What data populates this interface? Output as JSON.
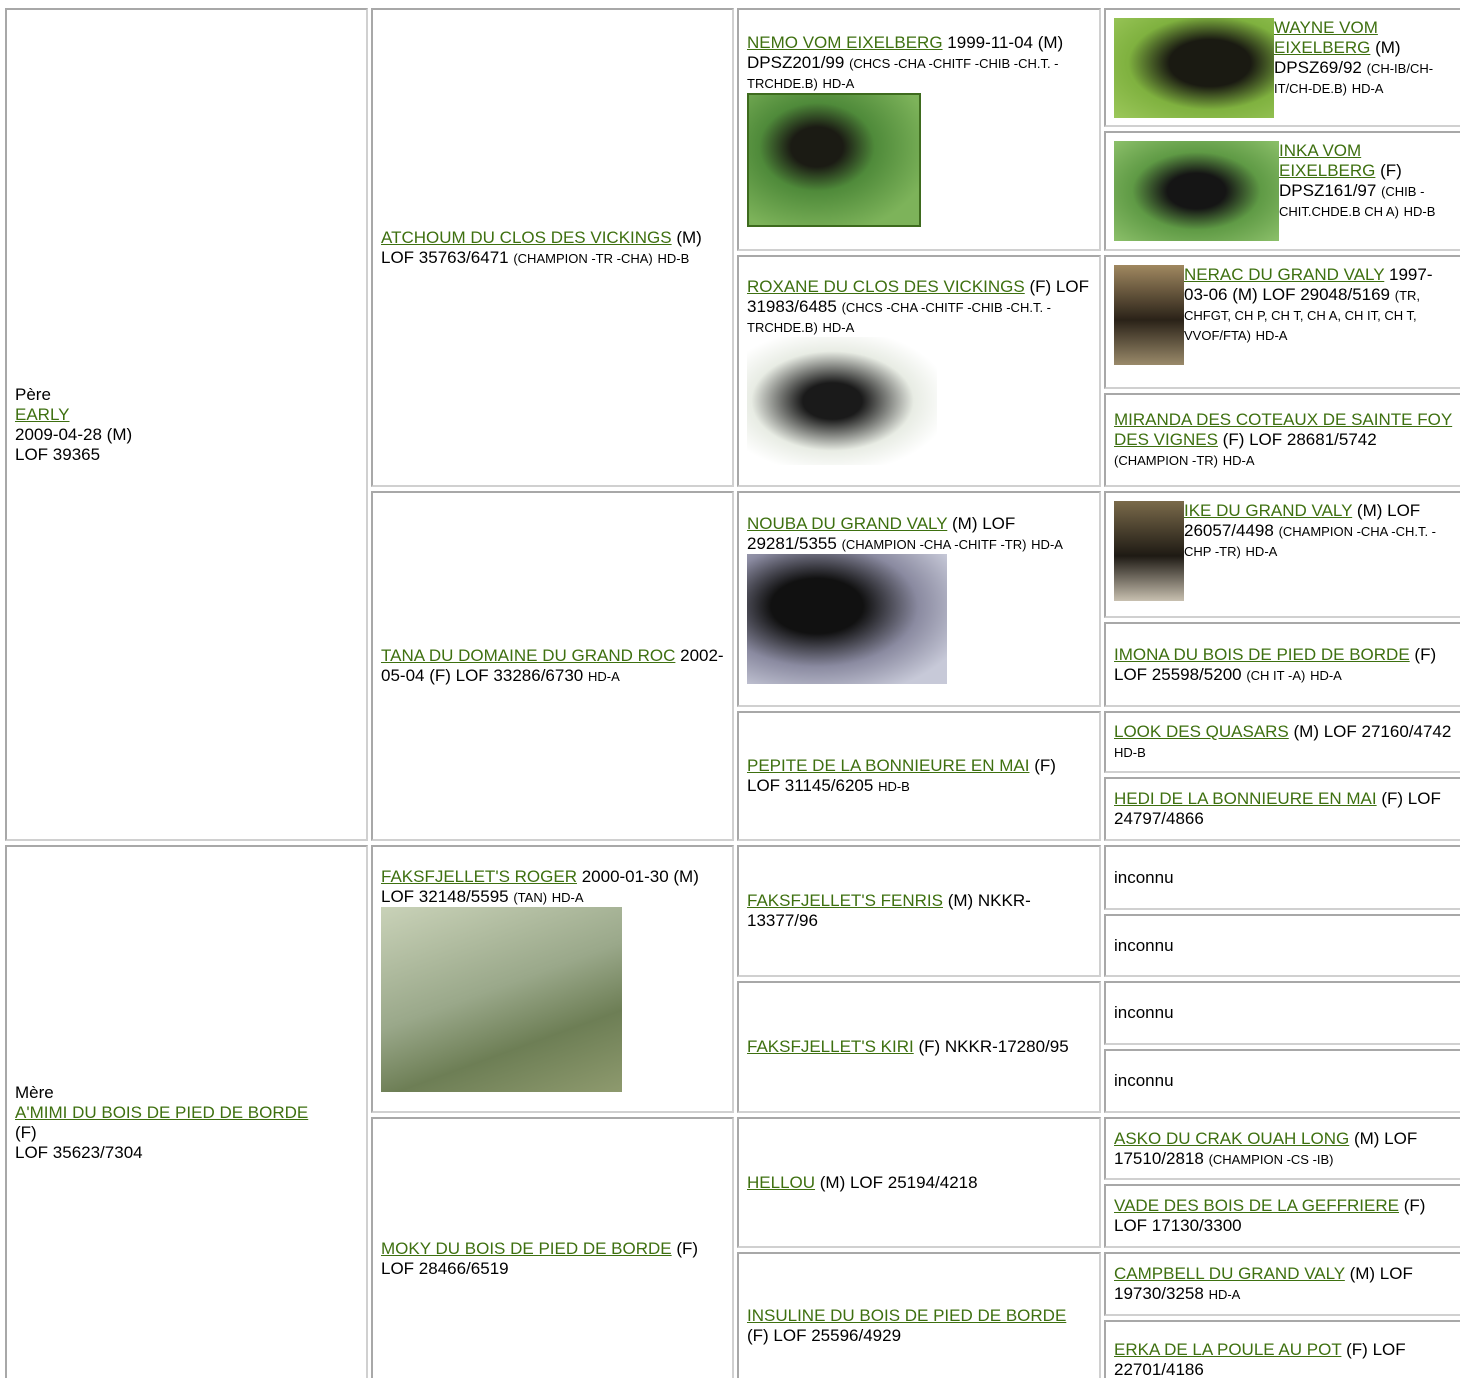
{
  "pedigree": {
    "columns": [
      [
        {
          "label": "Père",
          "name": "EARLY",
          "birth": "2009-04-28 (M)",
          "registration": "LOF 39365"
        },
        {
          "label": "Mère",
          "name": "A'MIMI DU BOIS DE PIED DE BORDE",
          "birth": "(F)",
          "registration": "LOF 35623/7304"
        }
      ],
      [
        {
          "name": "ATCHOUM DU CLOS DES VICKINGS",
          "details": "(M) LOF 35763/6471",
          "titles": "(CHAMPION -TR -CHA)",
          "health": "HD-B"
        },
        {
          "name": "TANA DU DOMAINE DU GRAND ROC",
          "details": "2002-05-04 (F) LOF 33286/6730",
          "health": "HD-A"
        },
        {
          "name": "FAKSFJELLET'S ROGER",
          "details": "2000-01-30 (M) LOF 32148/5595",
          "titles": "(TAN)",
          "health": "HD-A"
        },
        {
          "name": "MOKY DU BOIS DE PIED DE BORDE",
          "details": "(F) LOF 28466/6519"
        }
      ],
      [
        {
          "name": "NEMO VOM EIXELBERG",
          "details": "1999-11-04 (M) DPSZ201/99",
          "titles": "(CHCS -CHA -CHITF -CHIB -CH.T. -TRCHDE.B)",
          "health": "HD-A"
        },
        {
          "name": "ROXANE DU CLOS DES VICKINGS",
          "details": "(F) LOF 31983/6485",
          "titles": "(CHCS -CHA -CHITF -CHIB -CH.T. -TRCHDE.B)",
          "health": "HD-A"
        },
        {
          "name": "NOUBA DU GRAND VALY",
          "details": "(M) LOF 29281/5355",
          "titles": "(CHAMPION -CHA -CHITF -TR)",
          "health": "HD-A"
        },
        {
          "name": "PEPITE DE LA BONNIEURE EN MAI",
          "details": "(F) LOF 31145/6205",
          "health": "HD-B"
        },
        {
          "name": "FAKSFJELLET'S FENRIS",
          "details": "(M) NKKR-13377/96"
        },
        {
          "name": "FAKSFJELLET'S KIRI",
          "details": "(F) NKKR-17280/95"
        },
        {
          "name": "HELLOU",
          "details": "(M) LOF 25194/4218"
        },
        {
          "name": "INSULINE DU BOIS DE PIED DE BORDE",
          "details": "(F) LOF 25596/4929"
        }
      ],
      [
        {
          "name": "WAYNE VOM EIXELBERG",
          "details": "(M) DPSZ69/92",
          "titles": "(CH-IB/CH-IT/CH-DE.B)",
          "health": "HD-A"
        },
        {
          "name": "INKA VOM EIXELBERG",
          "details": "(F) DPSZ161/97",
          "titles": "(CHIB -CHIT.CHDE.B CH A)",
          "health": "HD-B"
        },
        {
          "name": "NERAC DU GRAND VALY",
          "details": "1997-03-06 (M) LOF 29048/5169",
          "titles": "(TR, CHFGT, CH P, CH T, CH A, CH IT, CH T, VVOF/FTA)",
          "health": "HD-A"
        },
        {
          "name": "MIRANDA DES COTEAUX DE SAINTE FOY DES VIGNES",
          "details": "(F) LOF 28681/5742",
          "titles": "(CHAMPION -TR)",
          "health": "HD-A"
        },
        {
          "name": "IKE DU GRAND VALY",
          "details": "(M) LOF 26057/4498",
          "titles": "(CHAMPION -CHA -CH.T. -CHP -TR)",
          "health": "HD-A"
        },
        {
          "name": "IMONA DU BOIS DE PIED DE BORDE",
          "details": "(F) LOF 25598/5200",
          "titles": "(CH IT -A)",
          "health": "HD-A"
        },
        {
          "name": "LOOK DES QUASARS",
          "details": "(M) LOF 27160/4742",
          "health": "HD-B"
        },
        {
          "name": "HEDI DE LA BONNIEURE EN MAI",
          "details": "(F) LOF 24797/4866"
        },
        {
          "text": "inconnu"
        },
        {
          "text": "inconnu"
        },
        {
          "text": "inconnu"
        },
        {
          "text": "inconnu"
        },
        {
          "name": "ASKO DU CRAK OUAH LONG",
          "details": "(M) LOF 17510/2818",
          "titles": "(CHAMPION -CS -IB)"
        },
        {
          "name": "VADE DES BOIS DE LA GEFFRIERE",
          "details": "(F) LOF 17130/3300"
        },
        {
          "name": "CAMPBELL DU GRAND VALY",
          "details": "(M) LOF 19730/3258",
          "health": "HD-A"
        },
        {
          "name": "ERKA DE LA POULE AU POT",
          "details": "(F) LOF 22701/4186"
        }
      ]
    ]
  }
}
